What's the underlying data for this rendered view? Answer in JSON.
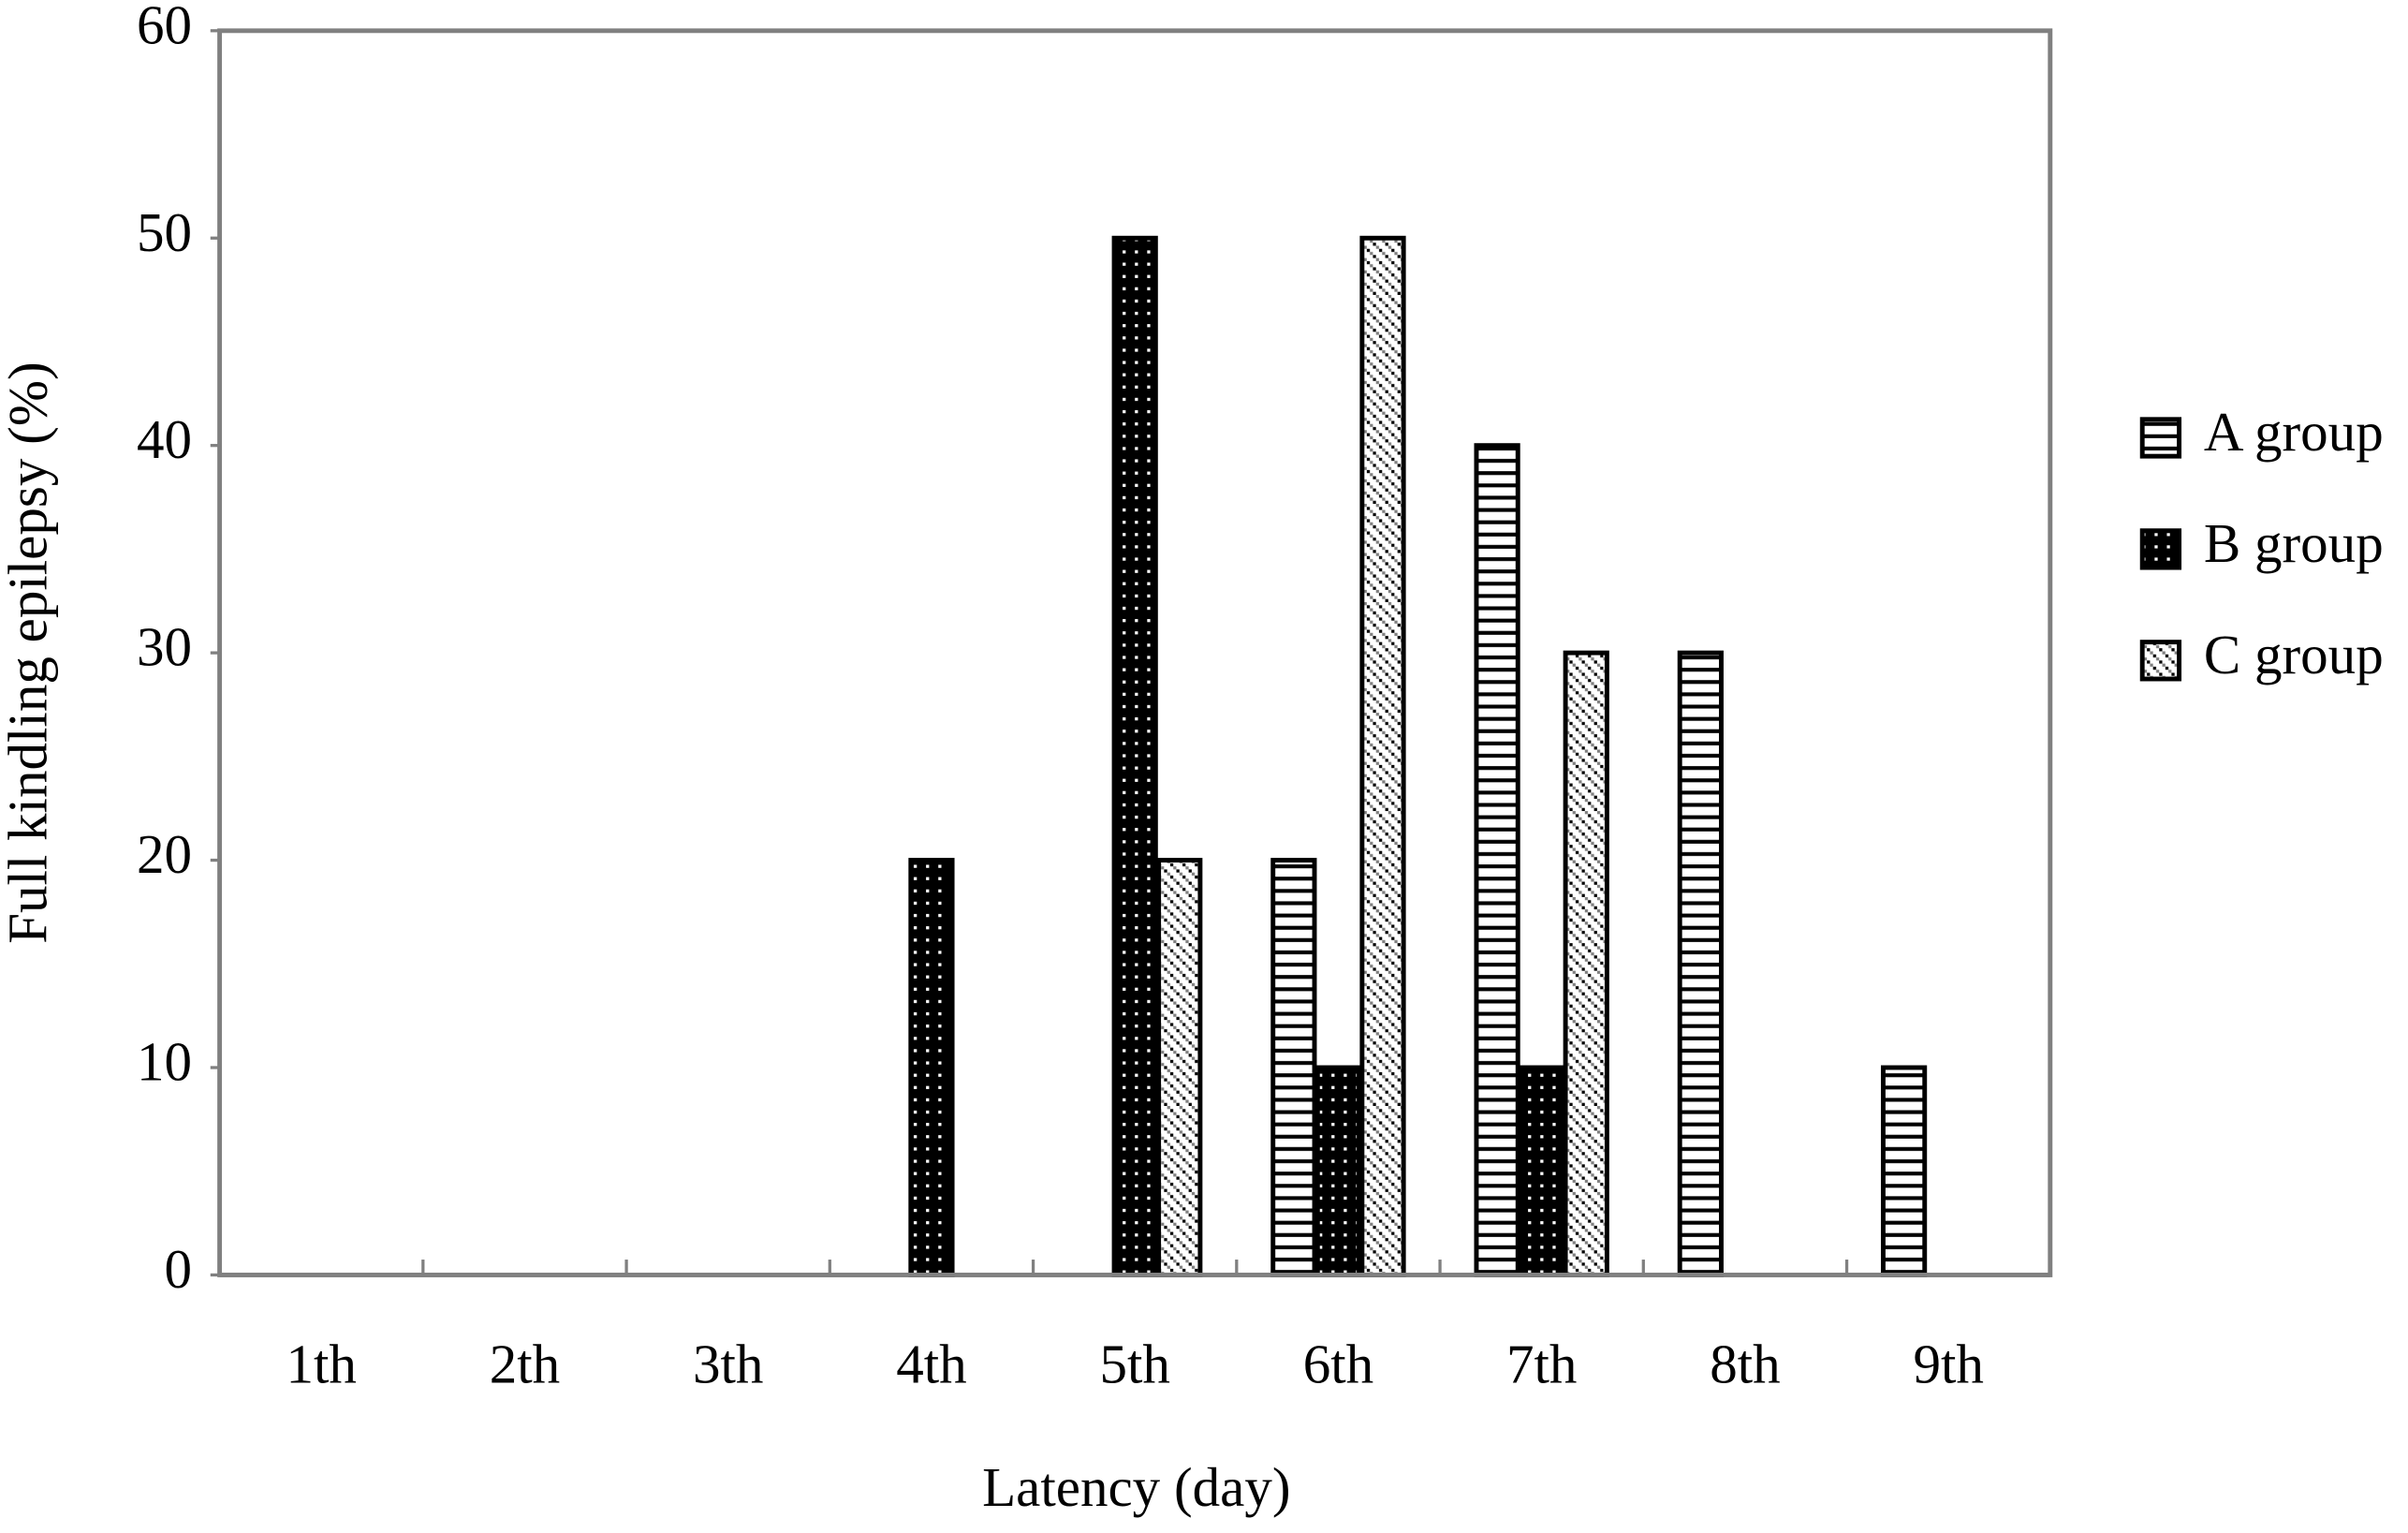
{
  "chart_data": {
    "type": "bar",
    "y_label": "Full kindling epilepsy (%)",
    "x_label": "Latency (day)",
    "categories": [
      "1th",
      "2th",
      "3th",
      "4th",
      "5th",
      "6th",
      "7th",
      "8th",
      "9th"
    ],
    "series": [
      {
        "name": "A group",
        "color": "#ffffff",
        "pattern": "horizontal-lines",
        "values": [
          0,
          0,
          0,
          0,
          0,
          20,
          40,
          30,
          10
        ]
      },
      {
        "name": "B group",
        "color": "#000000",
        "pattern": "dots",
        "values": [
          0,
          0,
          0,
          20,
          50,
          10,
          10,
          0,
          0
        ]
      },
      {
        "name": "C group",
        "color": "#808080",
        "pattern": "checker",
        "values": [
          0,
          0,
          0,
          0,
          20,
          50,
          30,
          0,
          0
        ]
      }
    ],
    "ylim": [
      0,
      60
    ],
    "yticks": [
      0,
      10,
      20,
      30,
      40,
      50,
      60
    ],
    "legend": "right"
  }
}
